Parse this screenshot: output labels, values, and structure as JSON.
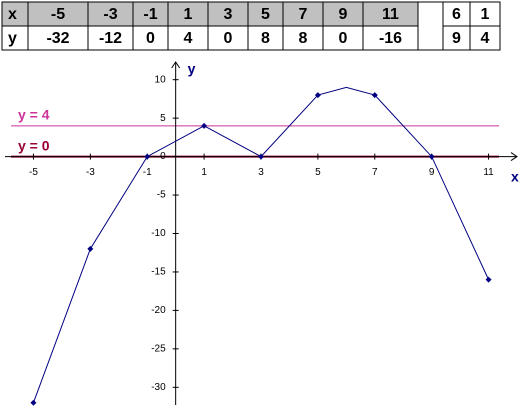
{
  "table": {
    "rows": [
      [
        "x",
        -5,
        -3,
        -1,
        1,
        3,
        5,
        7,
        9,
        11
      ],
      [
        "y",
        -32,
        -12,
        0,
        4,
        0,
        8,
        8,
        0,
        -16
      ]
    ]
  },
  "side_table": {
    "rows": [
      [
        6,
        1
      ],
      [
        9,
        4
      ]
    ]
  },
  "chart_data": {
    "type": "line",
    "xlabel": "x",
    "ylabel": "y",
    "xlim": [
      -6,
      12
    ],
    "ylim": [
      -32.3,
      12.3
    ],
    "xticks": [
      -5,
      -3,
      -1,
      1,
      3,
      5,
      7,
      9,
      11
    ],
    "yticks": [
      10,
      5,
      0,
      -5,
      -10,
      -15,
      -20,
      -25,
      -30
    ],
    "series": [
      {
        "mode": "line",
        "color": "#000080",
        "x": [
          -5,
          -3,
          -1,
          1,
          3,
          5,
          6,
          7,
          9,
          11
        ],
        "values": [
          -32,
          -12,
          0,
          4,
          0,
          8,
          9,
          8,
          0,
          -16
        ]
      },
      {
        "mode": "markers",
        "color": "#000080",
        "x": [
          -5,
          -3,
          -1,
          1,
          3,
          5,
          7,
          9,
          11
        ],
        "values": [
          -32,
          -12,
          0,
          4,
          0,
          8,
          8,
          0,
          -16
        ]
      }
    ],
    "hlines": [
      {
        "label": "y = 4",
        "value": 4,
        "color": "#cc3399"
      },
      {
        "label": "y = 0",
        "value": 0,
        "color": "#990033"
      }
    ]
  }
}
